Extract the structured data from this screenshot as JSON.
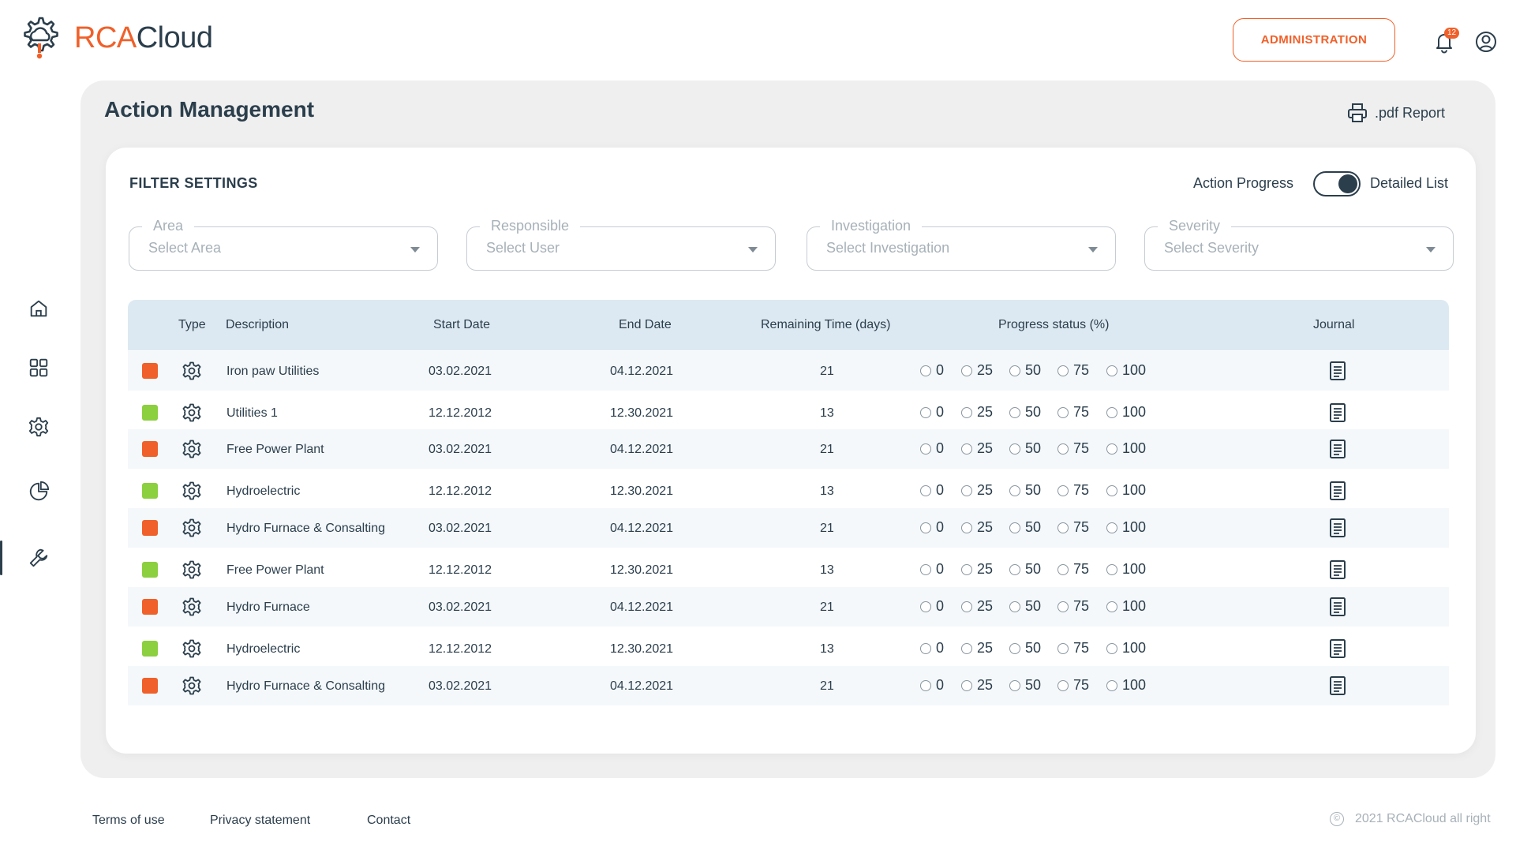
{
  "brand": {
    "name_accent": "RCA",
    "name_rest": "Cloud",
    "accent_color": "#f0602a",
    "dark_color": "#2b3e4c"
  },
  "header": {
    "admin_label": "ADMINISTRATION",
    "notification_count": "12"
  },
  "sidebar": {
    "items": [
      "home-icon",
      "dashboard-grid-icon",
      "settings-gear-icon",
      "pie-chart-icon",
      "wrench-icon"
    ],
    "active": "wrench-icon"
  },
  "page": {
    "title": "Action Management",
    "pdf_label": ".pdf Report"
  },
  "filters": {
    "title": "FILTER SETTINGS",
    "toggle_left": "Action Progress",
    "toggle_right": "Detailed List",
    "area": {
      "label": "Area",
      "placeholder": "Select Area"
    },
    "responsible": {
      "label": "Responsible",
      "placeholder": "Select User"
    },
    "investigation": {
      "label": "Investigation",
      "placeholder": "Select Investigation"
    },
    "severity": {
      "label": "Severity",
      "placeholder": "Select Severity"
    }
  },
  "table": {
    "headers": {
      "type": "Type",
      "description": "Description",
      "start": "Start Date",
      "end": "End Date",
      "remaining": "Remaining Time (days)",
      "progress": "Progress status (%)",
      "journal": "Journal"
    },
    "progress_options": [
      "0",
      "25",
      "50",
      "75",
      "100"
    ],
    "status_colors": {
      "orange": "#f0602a",
      "green": "#8ccf3f"
    },
    "rows": [
      {
        "status": "orange",
        "description": "Iron paw Utilities",
        "start": "03.02.2021",
        "end": "04.12.2021",
        "remaining": "21"
      },
      {
        "status": "green",
        "description": "Utilities 1",
        "start": "12.12.2012",
        "end": "12.30.2021",
        "remaining": "13"
      },
      {
        "status": "orange",
        "description": "Free Power Plant",
        "start": "03.02.2021",
        "end": "04.12.2021",
        "remaining": "21"
      },
      {
        "status": "green",
        "description": "Hydroelectric",
        "start": "12.12.2012",
        "end": "12.30.2021",
        "remaining": "13"
      },
      {
        "status": "orange",
        "description": "Hydro Furnace & Consalting",
        "start": "03.02.2021",
        "end": "04.12.2021",
        "remaining": "21"
      },
      {
        "status": "green",
        "description": "Free Power Plant",
        "start": "12.12.2012",
        "end": "12.30.2021",
        "remaining": "13"
      },
      {
        "status": "orange",
        "description": "Hydro Furnace",
        "start": "03.02.2021",
        "end": "04.12.2021",
        "remaining": "21"
      },
      {
        "status": "green",
        "description": "Hydroelectric",
        "start": "12.12.2012",
        "end": "12.30.2021",
        "remaining": "13"
      },
      {
        "status": "orange",
        "description": "Hydro Furnace & Consalting",
        "start": "03.02.2021",
        "end": "04.12.2021",
        "remaining": "21"
      }
    ]
  },
  "footer": {
    "terms": "Terms of use",
    "privacy": "Privacy statement",
    "contact": "Contact",
    "copyright": "2021 RCACloud all right"
  }
}
